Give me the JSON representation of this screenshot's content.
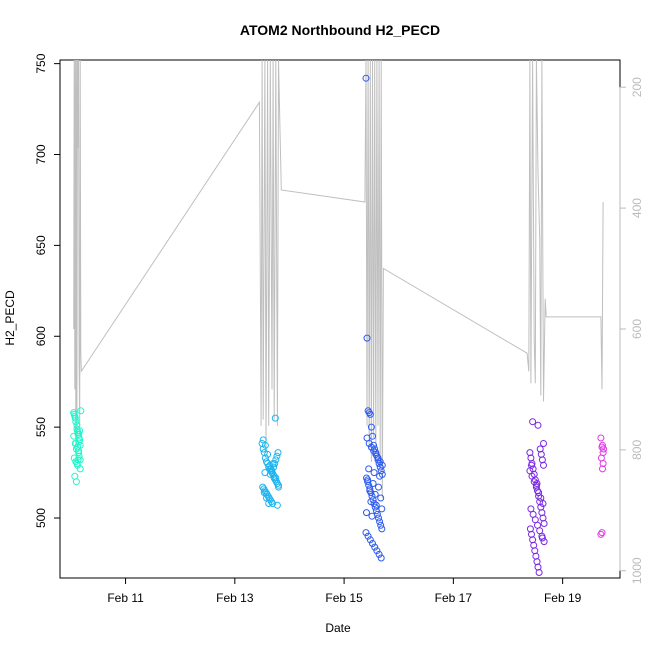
{
  "chart_data": {
    "type": "scatter",
    "title": "ATOM2 Northbound H2_PECD",
    "xlabel": "Date",
    "ylabel": "H2_PECD",
    "x_ticks": [
      "Feb 11",
      "Feb 13",
      "Feb 15",
      "Feb 17",
      "Feb 19"
    ],
    "x_tick_days": [
      11,
      13,
      15,
      17,
      19
    ],
    "xlim_days": [
      9.8,
      20.05
    ],
    "ylim": [
      467,
      752
    ],
    "y_ticks": [
      500,
      550,
      600,
      650,
      700,
      750
    ],
    "y2_ticks": [
      200,
      400,
      600,
      800,
      1000
    ],
    "y2lim": [
      1012,
      155
    ],
    "grid": false,
    "series": [
      {
        "color": "#22f5c9",
        "x": [
          10.05,
          10.07,
          10.09,
          10.11,
          10.13,
          10.15,
          10.17,
          10.05,
          10.08,
          10.1,
          10.12,
          10.14,
          10.16,
          10.18,
          10.06,
          10.09,
          10.11,
          10.13,
          10.15,
          10.17,
          10.07,
          10.1,
          10.12,
          10.14,
          10.16,
          10.06,
          10.08,
          10.11,
          10.13,
          10.15,
          10.17,
          10.09,
          10.12,
          10.14
        ],
        "y": [
          558,
          556,
          553,
          549,
          547,
          544,
          540,
          545,
          541,
          538,
          548,
          546,
          543,
          559,
          533,
          531,
          530,
          532,
          534,
          527,
          523,
          520,
          529,
          536,
          548,
          557,
          555,
          551,
          546,
          542,
          532,
          541,
          539,
          537
        ]
      },
      {
        "color": "#1fb4ef",
        "x": [
          13.5,
          13.52,
          13.54,
          13.56,
          13.58,
          13.6,
          13.62,
          13.64,
          13.66,
          13.68,
          13.7,
          13.72,
          13.74,
          13.76,
          13.78,
          13.8,
          13.51,
          13.53,
          13.55,
          13.57,
          13.59,
          13.61,
          13.63,
          13.65,
          13.67,
          13.69,
          13.71,
          13.73,
          13.75,
          13.77,
          13.79,
          13.52,
          13.56,
          13.6,
          13.64,
          13.68,
          13.72,
          13.76,
          13.8,
          13.54,
          13.58,
          13.62,
          13.66,
          13.7,
          13.74,
          13.78,
          13.55,
          13.65,
          13.75
        ],
        "y": [
          541,
          538,
          536,
          533,
          531,
          530,
          528,
          527,
          526,
          525,
          524,
          522,
          521,
          520,
          519,
          518,
          517,
          516,
          515,
          514,
          513,
          512,
          511,
          510,
          509,
          508,
          528,
          530,
          532,
          534,
          536,
          543,
          540,
          535,
          529,
          526,
          523,
          520,
          517,
          514,
          511,
          508,
          527,
          530,
          555,
          507,
          525,
          524,
          522
        ]
      },
      {
        "color": "#2e5bf0",
        "x": [
          15.4,
          15.42,
          15.44,
          15.46,
          15.48,
          15.5,
          15.52,
          15.54,
          15.56,
          15.58,
          15.6,
          15.62,
          15.64,
          15.66,
          15.68,
          15.7,
          15.41,
          15.43,
          15.45,
          15.47,
          15.49,
          15.51,
          15.53,
          15.55,
          15.57,
          15.59,
          15.61,
          15.63,
          15.65,
          15.67,
          15.69,
          15.4,
          15.44,
          15.48,
          15.52,
          15.56,
          15.6,
          15.64,
          15.68,
          15.42,
          15.46,
          15.5,
          15.54,
          15.58,
          15.62,
          15.66,
          15.7,
          15.45,
          15.55,
          15.65,
          15.43,
          15.53,
          15.63,
          15.47,
          15.57,
          15.67,
          15.49,
          15.59,
          15.69,
          15.41,
          15.51
        ],
        "y": [
          742,
          599,
          559,
          558,
          557,
          550,
          545,
          540,
          538,
          536,
          534,
          532,
          530,
          528,
          526,
          524,
          522,
          520,
          518,
          516,
          514,
          512,
          510,
          508,
          506,
          504,
          502,
          500,
          498,
          496,
          494,
          492,
          490,
          488,
          486,
          484,
          482,
          480,
          478,
          544,
          541,
          539,
          537,
          535,
          533,
          531,
          529,
          527,
          525,
          523,
          521,
          519,
          517,
          515,
          513,
          511,
          509,
          507,
          505,
          503,
          501
        ]
      },
      {
        "color": "#7a27e6",
        "x": [
          18.4,
          18.42,
          18.44,
          18.46,
          18.48,
          18.5,
          18.52,
          18.54,
          18.56,
          18.58,
          18.6,
          18.62,
          18.64,
          18.66,
          18.41,
          18.43,
          18.45,
          18.47,
          18.49,
          18.51,
          18.53,
          18.55,
          18.57,
          18.59,
          18.61,
          18.63,
          18.65,
          18.4,
          18.44,
          18.48,
          18.52,
          18.56,
          18.6,
          18.64,
          18.42,
          18.46,
          18.5,
          18.54,
          18.58,
          18.62,
          18.66,
          18.45,
          18.55,
          18.65,
          18.43,
          18.53,
          18.63
        ],
        "y": [
          536,
          533,
          530,
          527,
          524,
          521,
          518,
          515,
          512,
          509,
          506,
          503,
          500,
          497,
          494,
          491,
          488,
          485,
          482,
          479,
          476,
          473,
          470,
          538,
          535,
          532,
          529,
          526,
          523,
          520,
          517,
          514,
          511,
          508,
          505,
          502,
          499,
          496,
          493,
          490,
          487,
          553,
          551,
          541,
          529,
          519,
          489
        ]
      },
      {
        "color": "#e33ae6",
        "x": [
          19.7,
          19.72,
          19.74,
          19.71,
          19.73,
          19.75,
          19.72,
          19.7,
          19.74,
          19.73
        ],
        "y": [
          544,
          539,
          536,
          533,
          540,
          538,
          492,
          491,
          530,
          527
        ]
      }
    ],
    "line2": {
      "color": "#bfbfbf",
      "x": [
        10.05,
        10.06,
        10.07,
        10.08,
        10.09,
        10.1,
        10.11,
        10.12,
        10.13,
        10.14,
        10.15,
        10.16,
        10.17,
        10.18,
        10.19,
        13.45,
        13.48,
        13.5,
        13.52,
        13.55,
        13.57,
        13.6,
        13.62,
        13.65,
        13.68,
        13.7,
        13.72,
        13.75,
        13.78,
        13.8,
        13.85,
        15.38,
        15.4,
        15.42,
        15.44,
        15.46,
        15.48,
        15.5,
        15.52,
        15.54,
        15.56,
        15.58,
        15.6,
        15.62,
        15.64,
        15.66,
        15.68,
        15.7,
        15.72,
        18.35,
        18.38,
        18.4,
        18.42,
        18.45,
        18.48,
        18.5,
        18.52,
        18.55,
        18.58,
        18.6,
        18.62,
        18.65,
        18.68,
        18.7,
        19.7,
        19.72,
        19.74
      ],
      "y": [
        600,
        150,
        700,
        150,
        800,
        150,
        780,
        150,
        300,
        150,
        650,
        760,
        150,
        640,
        670,
        225,
        760,
        150,
        750,
        150,
        800,
        150,
        760,
        150,
        700,
        150,
        750,
        150,
        760,
        150,
        370,
        390,
        150,
        760,
        150,
        800,
        150,
        820,
        150,
        780,
        150,
        800,
        150,
        760,
        150,
        820,
        150,
        880,
        500,
        640,
        670,
        150,
        690,
        150,
        620,
        690,
        150,
        340,
        450,
        710,
        150,
        720,
        550,
        580,
        580,
        700,
        390
      ]
    }
  }
}
